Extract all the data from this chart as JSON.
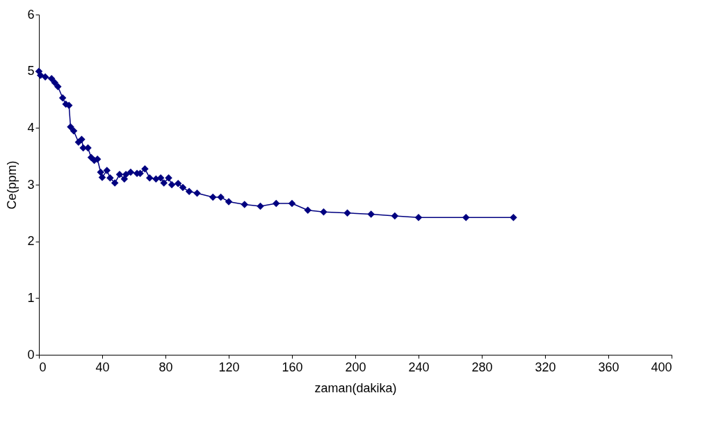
{
  "chart_data": {
    "type": "line",
    "xlabel": "zaman(dakika)",
    "ylabel": "Ce(ppm)",
    "xlim": [
      0,
      400
    ],
    "xticks": [
      0,
      40,
      80,
      120,
      160,
      200,
      240,
      280,
      320,
      360,
      400
    ],
    "ylim": [
      0,
      6
    ],
    "yticks": [
      0,
      1,
      2,
      3,
      4,
      5,
      6
    ],
    "grid": false,
    "marker": "diamond",
    "line_style": "solid",
    "series": [
      {
        "color": "#000080",
        "x": [
          0,
          1,
          4,
          8,
          10,
          12,
          15,
          17,
          19,
          20,
          22,
          25,
          27,
          28,
          31,
          33,
          35,
          37,
          39,
          40,
          43,
          45,
          48,
          51,
          54,
          55,
          58,
          62,
          64,
          67,
          70,
          74,
          77,
          79,
          82,
          84,
          88,
          91,
          95,
          100,
          110,
          115,
          120,
          130,
          140,
          150,
          160,
          170,
          180,
          195,
          210,
          225,
          240,
          270,
          300
        ],
        "values": [
          5.0,
          4.93,
          4.9,
          4.87,
          4.8,
          4.73,
          4.53,
          4.42,
          4.4,
          4.02,
          3.95,
          3.75,
          3.8,
          3.65,
          3.65,
          3.48,
          3.43,
          3.45,
          3.22,
          3.13,
          3.25,
          3.12,
          3.03,
          3.18,
          3.1,
          3.18,
          3.22,
          3.2,
          3.2,
          3.28,
          3.12,
          3.1,
          3.12,
          3.03,
          3.12,
          3.0,
          3.02,
          2.95,
          2.88,
          2.85,
          2.78,
          2.78,
          2.7,
          2.65,
          2.62,
          2.67,
          2.67,
          2.55,
          2.52,
          2.5,
          2.48,
          2.45,
          2.42,
          2.42,
          2.42
        ]
      }
    ]
  }
}
